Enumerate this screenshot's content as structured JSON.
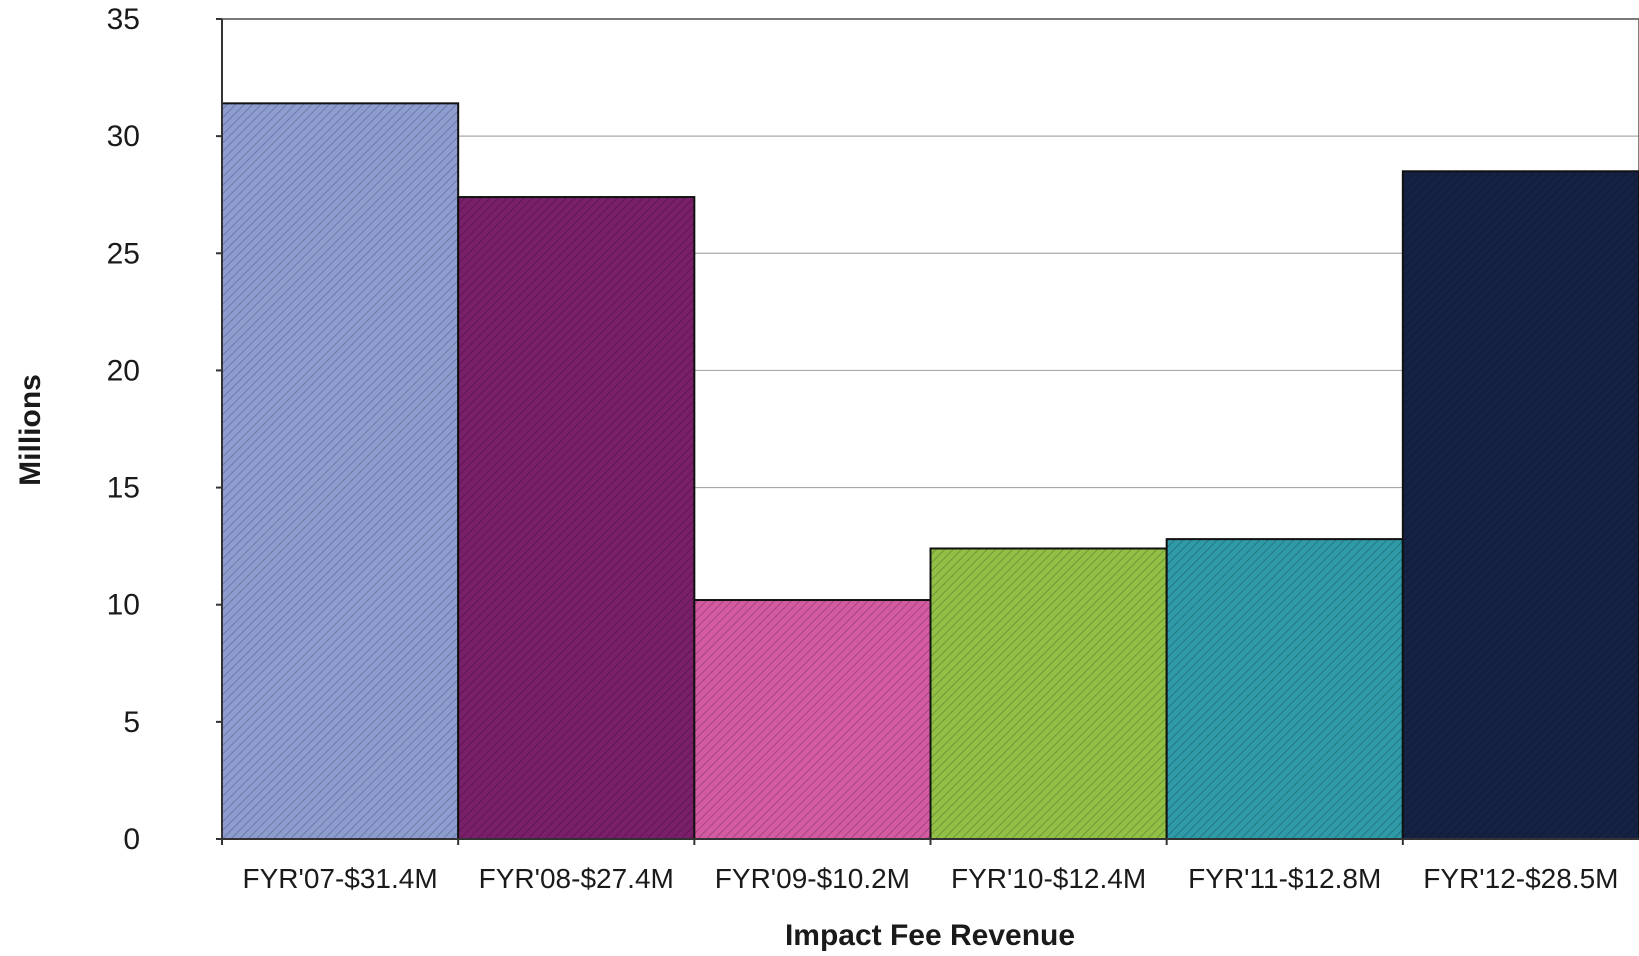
{
  "chart_data": {
    "type": "bar",
    "title": "",
    "xlabel": "Impact Fee Revenue",
    "ylabel": "Millions",
    "ylim": [
      0,
      35
    ],
    "yticks": [
      0,
      5,
      10,
      15,
      20,
      25,
      30,
      35
    ],
    "grid": true,
    "legend": "none",
    "categories": [
      "FYR'07-$31.4M",
      "FYR'08-$27.4M",
      "FYR'09-$10.2M",
      "FYR'10-$12.4M",
      "FYR'11-$12.8M",
      "FYR'12-$28.5M"
    ],
    "values": [
      31.4,
      27.4,
      10.2,
      12.4,
      12.8,
      28.5
    ],
    "colors": [
      "#8e9dd0",
      "#7a1f6a",
      "#d45aa2",
      "#92c046",
      "#2f9aa8",
      "#162244"
    ]
  }
}
